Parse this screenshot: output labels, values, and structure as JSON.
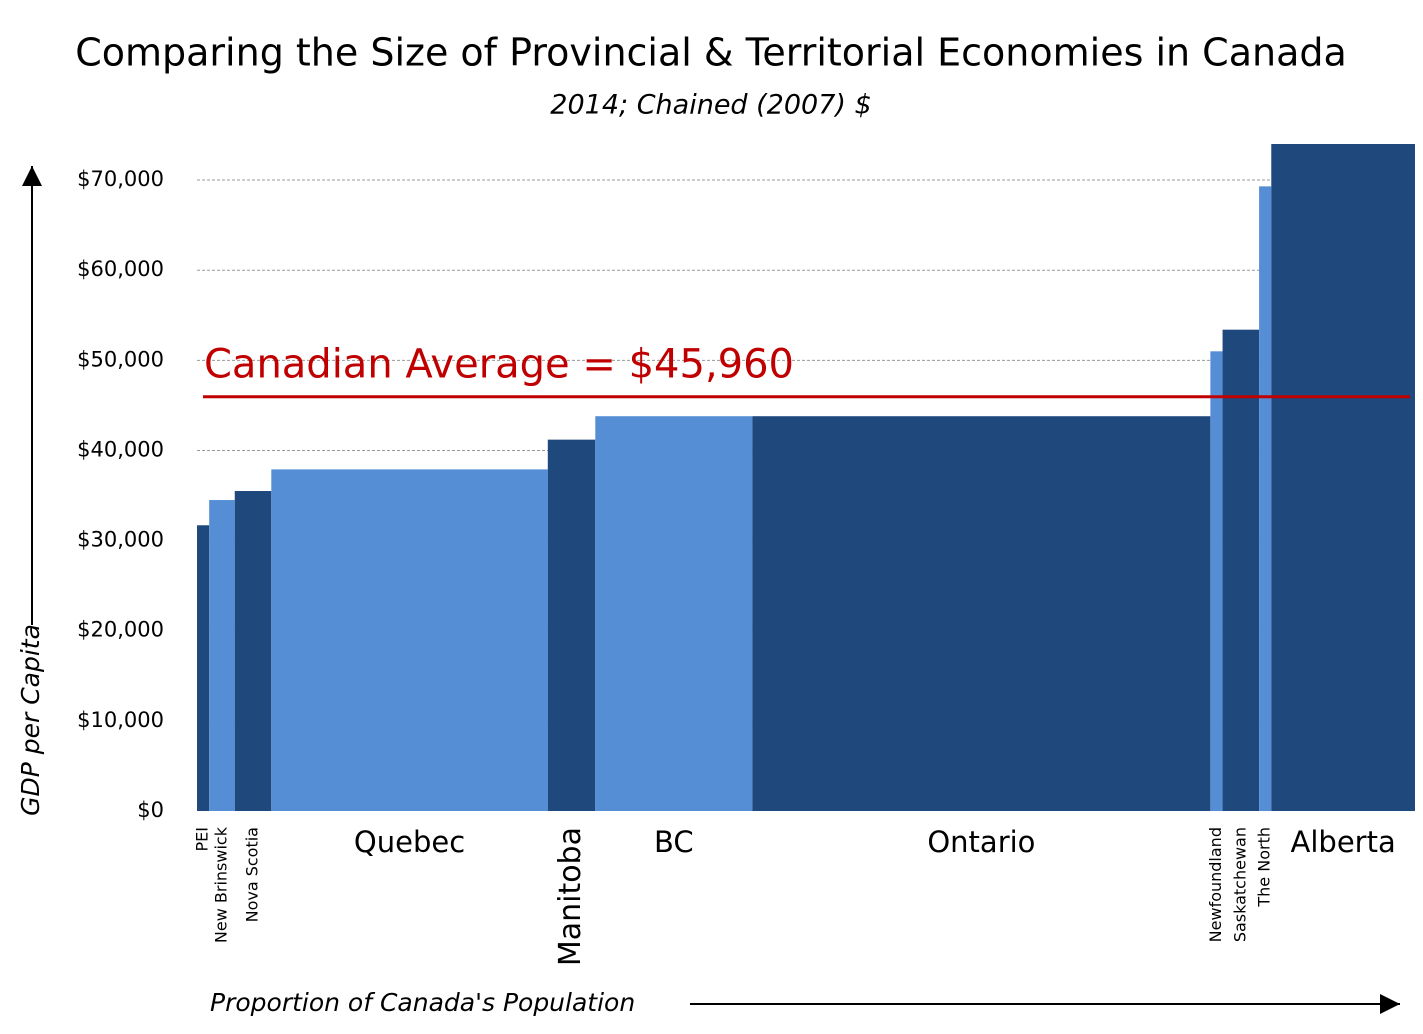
{
  "chart_data": {
    "type": "variwide-bar",
    "title": "Comparing the Size of Provincial & Territorial Economies in Canada",
    "subtitle": "2014; Chained (2007) $",
    "y_label": "GDP per Capita",
    "x_label": "Proportion of Canada's Population",
    "categories": [
      "PEI",
      "New Brinswick",
      "Nova Scotia",
      "Quebec",
      "Manitoba",
      "BC",
      "Ontario",
      "Newfoundland",
      "Saskatchewan",
      "The North",
      "Alberta"
    ],
    "values": [
      31700,
      34500,
      35500,
      37900,
      41200,
      43800,
      43800,
      51000,
      53400,
      69300,
      74000
    ],
    "widths": [
      1.0,
      2.1,
      3.0,
      22.7,
      3.9,
      12.9,
      37.6,
      1.0,
      3.0,
      1.0,
      11.8
    ],
    "colors": [
      "#1f497d",
      "#558ed5",
      "#1f497d",
      "#558ed5",
      "#1f497d",
      "#558ed5",
      "#1f497d",
      "#558ed5",
      "#1f497d",
      "#558ed5",
      "#1f497d"
    ],
    "xlim": [
      0,
      100
    ],
    "ylim": [
      0,
      74000
    ],
    "yticks": [
      {
        "value": 0,
        "label": "$0"
      },
      {
        "value": 10000,
        "label": "$10,000"
      },
      {
        "value": 20000,
        "label": "$20,000"
      },
      {
        "value": 30000,
        "label": "$30,000"
      },
      {
        "value": 40000,
        "label": "$40,000"
      },
      {
        "value": 50000,
        "label": "$50,000"
      },
      {
        "value": 60000,
        "label": "$60,000"
      },
      {
        "value": 70000,
        "label": "$70,000"
      }
    ],
    "grid": true,
    "reference_line": {
      "value": 45960,
      "label": "Canadian Average = $45,960",
      "color": "#c00000"
    }
  }
}
